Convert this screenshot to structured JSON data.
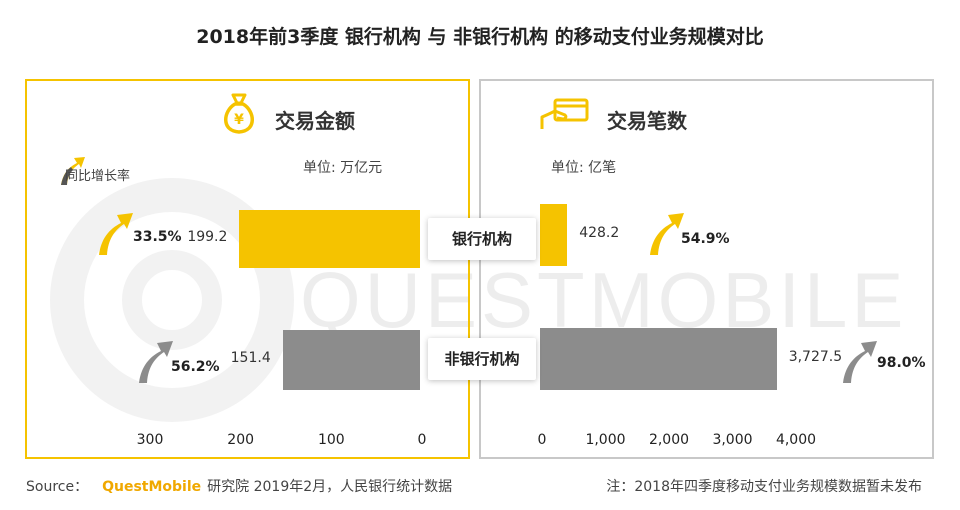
{
  "title": "2018年前3季度 银行机构 与 非银行机构 的移动支付业务规模对比",
  "legend_growth_label": "同比增长率",
  "colors": {
    "bank": "#f5c300",
    "nonbank": "#8c8c8c",
    "accent": "#f0a800"
  },
  "chart_data": [
    {
      "type": "bar",
      "orientation": "horizontal",
      "title": "交易金额",
      "unit": "单位: 万亿元",
      "categories": [
        "银行机构",
        "非银行机构"
      ],
      "values": [
        199.2,
        151.4
      ],
      "value_labels": [
        "199.2",
        "151.4"
      ],
      "growth": [
        "33.5%",
        "56.2%"
      ],
      "xlim": [
        0,
        300
      ],
      "reversed": true,
      "ticks": [
        "300",
        "200",
        "100",
        "0"
      ]
    },
    {
      "type": "bar",
      "orientation": "horizontal",
      "title": "交易笔数",
      "unit": "单位: 亿笔",
      "categories": [
        "银行机构",
        "非银行机构"
      ],
      "values": [
        428.2,
        3727.5
      ],
      "value_labels": [
        "428.2",
        "3,727.5"
      ],
      "growth": [
        "54.9%",
        "98.0%"
      ],
      "xlim": [
        0,
        4000
      ],
      "ticks": [
        "0",
        "1,000",
        "2,000",
        "3,000",
        "4,000"
      ]
    }
  ],
  "watermark": "QUESTMOBILE",
  "footer": {
    "source_label": "Source：",
    "brand": "QuestMobile",
    "source_text": "研究院 2019年2月，人民银行统计数据",
    "note": "注：2018年四季度移动支付业务规模数据暂未发布"
  }
}
